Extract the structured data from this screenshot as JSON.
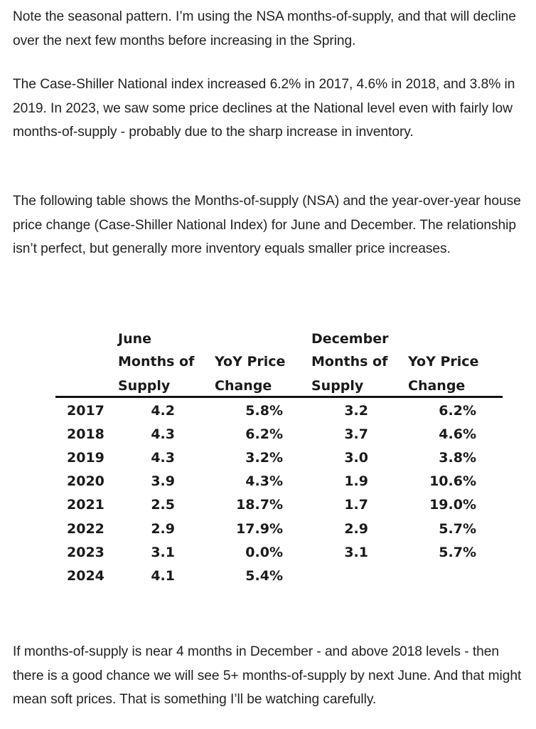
{
  "paragraphs": {
    "p1": "Note the seasonal pattern. I’m using the NSA months-of-supply, and that will decline over the next few months before increasing in the Spring.",
    "p2": "The Case-Shiller National index increased 6.2% in 2017, 4.6% in 2018, and 3.8% in 2019. In 2023, we saw some price declines at the National level even with fairly low months-of-supply - probably due to the sharp increase in inventory.",
    "p3": "The following table shows the Months-of-supply (NSA) and the year-over-year house price change (Case-Shiller National Index) for June and December. The relationship isn’t perfect, but generally more inventory equals smaller price increases.",
    "p4": "If months-of-supply is near 4 months in December - and above 2018 levels - then there is a good chance we will see 5+ months-of-supply by next June. And that might mean soft prices. That is something I’ll be watching carefully."
  },
  "table": {
    "groups": {
      "june": "June",
      "december": "December"
    },
    "headers": {
      "mos_line1": "Months of",
      "mos_line2": "Supply",
      "yoy_line1": "YoY Price",
      "yoy_line2": "Change"
    },
    "rows": [
      {
        "year": "2017",
        "june_mos": "4.2",
        "june_yoy": "5.8%",
        "dec_mos": "3.2",
        "dec_yoy": "6.2%"
      },
      {
        "year": "2018",
        "june_mos": "4.3",
        "june_yoy": "6.2%",
        "dec_mos": "3.7",
        "dec_yoy": "4.6%"
      },
      {
        "year": "2019",
        "june_mos": "4.3",
        "june_yoy": "3.2%",
        "dec_mos": "3.0",
        "dec_yoy": "3.8%"
      },
      {
        "year": "2020",
        "june_mos": "3.9",
        "june_yoy": "4.3%",
        "dec_mos": "1.9",
        "dec_yoy": "10.6%"
      },
      {
        "year": "2021",
        "june_mos": "2.5",
        "june_yoy": "18.7%",
        "dec_mos": "1.7",
        "dec_yoy": "19.0%"
      },
      {
        "year": "2022",
        "june_mos": "2.9",
        "june_yoy": "17.9%",
        "dec_mos": "2.9",
        "dec_yoy": "5.7%"
      },
      {
        "year": "2023",
        "june_mos": "3.1",
        "june_yoy": "0.0%",
        "dec_mos": "3.1",
        "dec_yoy": "5.7%"
      },
      {
        "year": "2024",
        "june_mos": "4.1",
        "june_yoy": "5.4%",
        "dec_mos": "",
        "dec_yoy": ""
      }
    ]
  }
}
